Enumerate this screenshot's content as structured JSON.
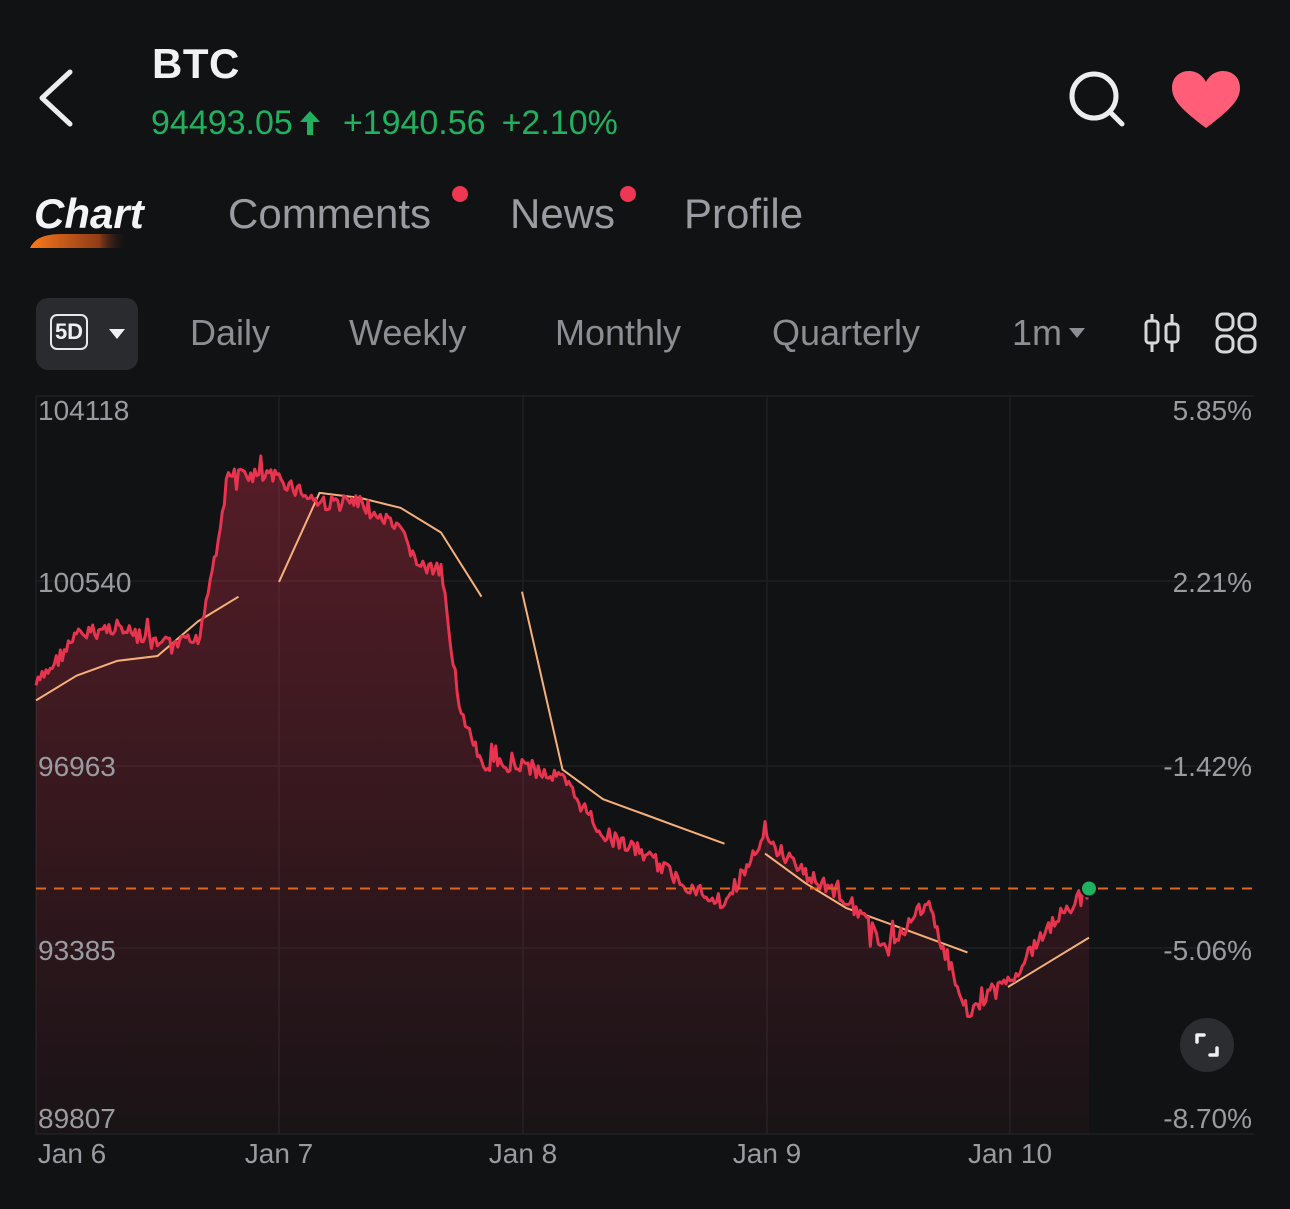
{
  "header": {
    "symbol": "BTC",
    "price": "94493.05",
    "change": "+1940.56",
    "change_pct": "+2.10%",
    "price_color": "#1fb15f",
    "icons": [
      "back-arrow-icon",
      "search-icon",
      "heart-icon"
    ],
    "favorite": true,
    "favorite_color": "#ff5d78"
  },
  "tabs": [
    {
      "label": "Chart",
      "active": true
    },
    {
      "label": "Comments",
      "unread_dot": true
    },
    {
      "label": "News",
      "unread_dot": true
    },
    {
      "label": "Profile"
    }
  ],
  "period_bar": {
    "selected_range": "5D",
    "periods": [
      "Daily",
      "Weekly",
      "Monthly",
      "Quarterly"
    ],
    "interval": "1m",
    "icons": [
      "candlestick-icon",
      "grid-layout-icon"
    ]
  },
  "chart_data": {
    "type": "line",
    "title": "",
    "series": [
      {
        "name": "",
        "color": "#e8344f",
        "fill": "area",
        "x": [
          "Jan 6 00:00",
          "Jan 6 04:00",
          "Jan 6 08:00",
          "Jan 6 12:00",
          "Jan 6 16:00",
          "Jan 6 18:00",
          "Jan 6 19:00",
          "Jan 7 00:00",
          "Jan 7 04:00",
          "Jan 7 08:00",
          "Jan 7 12:00",
          "Jan 7 14:00",
          "Jan 7 16:00",
          "Jan 7 18:00",
          "Jan 7 20:00",
          "Jan 8 00:00",
          "Jan 8 04:00",
          "Jan 8 08:00",
          "Jan 8 12:00",
          "Jan 8 16:00",
          "Jan 8 20:00",
          "Jan 9 00:00",
          "Jan 9 04:00",
          "Jan 9 08:00",
          "Jan 9 12:00",
          "Jan 9 16:00",
          "Jan 9 20:00",
          "Jan 10 00:00",
          "Jan 10 04:00",
          "Jan 10 08:00"
        ],
        "y": [
          98600,
          99600,
          99800,
          99400,
          99500,
          101600,
          102900,
          102800,
          102300,
          102300,
          101700,
          101000,
          100900,
          98000,
          97000,
          97000,
          96700,
          95600,
          95200,
          94600,
          94200,
          95500,
          94800,
          94300,
          93300,
          94200,
          92000,
          92600,
          93700,
          94493.05
        ]
      },
      {
        "name": "",
        "color": "#f6b07a",
        "x": [
          "Jan 6 00:00",
          "Jan 6 04:00",
          "Jan 6 08:00",
          "Jan 6 12:00",
          "Jan 6 16:00",
          "Jan 6 20:00",
          "Jan 7 00:00",
          "Jan 7 04:00",
          "Jan 7 08:00",
          "Jan 7 12:00",
          "Jan 7 16:00",
          "Jan 7 20:00",
          "Jan 8 00:00",
          "Jan 8 04:00",
          "Jan 8 08:00",
          "Jan 8 12:00",
          "Jan 8 16:00",
          "Jan 8 20:00",
          "Jan 9 00:00",
          "Jan 9 04:00",
          "Jan 9 08:00",
          "Jan 9 12:00",
          "Jan 9 16:00",
          "Jan 9 20:00",
          "Jan 10 00:00",
          "Jan 10 04:00",
          "Jan 10 08:00"
        ],
        "y": [
          98300,
          98800,
          99100,
          99200,
          99900,
          100400,
          100700,
          102500,
          102400,
          102200,
          101700,
          100400,
          100500,
          96900,
          96300,
          96000,
          95700,
          95400,
          95200,
          94600,
          94100,
          93800,
          93500,
          93200,
          92500,
          93000,
          93500
        ]
      }
    ],
    "reference_line": {
      "value": 94493.05,
      "style": "dashed",
      "color": "#e0651e"
    },
    "last_point_marker_color": "#1fb15f",
    "x_ticks": [
      "Jan 6",
      "Jan 7",
      "Jan 8",
      "Jan 9",
      "Jan 10"
    ],
    "y_ticks_left": [
      "104118",
      "100540",
      "96963",
      "93385",
      "89807"
    ],
    "y_ticks_right": [
      "5.85%",
      "2.21%",
      "-1.42%",
      "-5.06%",
      "-8.70%"
    ],
    "ylim": [
      89807,
      104118
    ],
    "xlabel": "",
    "ylabel": "",
    "grid": true,
    "legend": "none"
  },
  "controls": {
    "fullscreen_icon": "fullscreen-icon"
  }
}
